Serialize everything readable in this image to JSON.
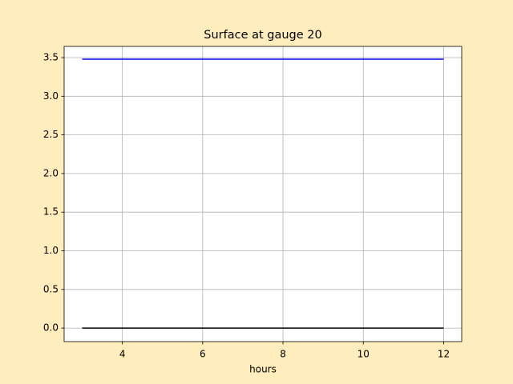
{
  "chart_data": {
    "type": "line",
    "title": "Surface at gauge 20",
    "xlabel": "hours",
    "series": [
      {
        "color": "#0000ff",
        "x": [
          3,
          12
        ],
        "values": [
          3.48,
          3.48
        ]
      },
      {
        "color": "#000000",
        "x": [
          3,
          12
        ],
        "values": [
          0,
          0
        ]
      }
    ],
    "xlim": [
      2.55,
      12.45
    ],
    "xticks": [
      4,
      6,
      8,
      10,
      12
    ],
    "ylim": [
      -0.175,
      3.645
    ],
    "yticks": [
      {
        "value": 0,
        "label": "0.0"
      },
      0.5,
      {
        "value": 1,
        "label": "1.0"
      },
      1.5,
      {
        "value": 2,
        "label": "2.0"
      },
      2.5,
      {
        "value": 3,
        "label": "3.0"
      },
      3.5
    ],
    "grid": true
  }
}
